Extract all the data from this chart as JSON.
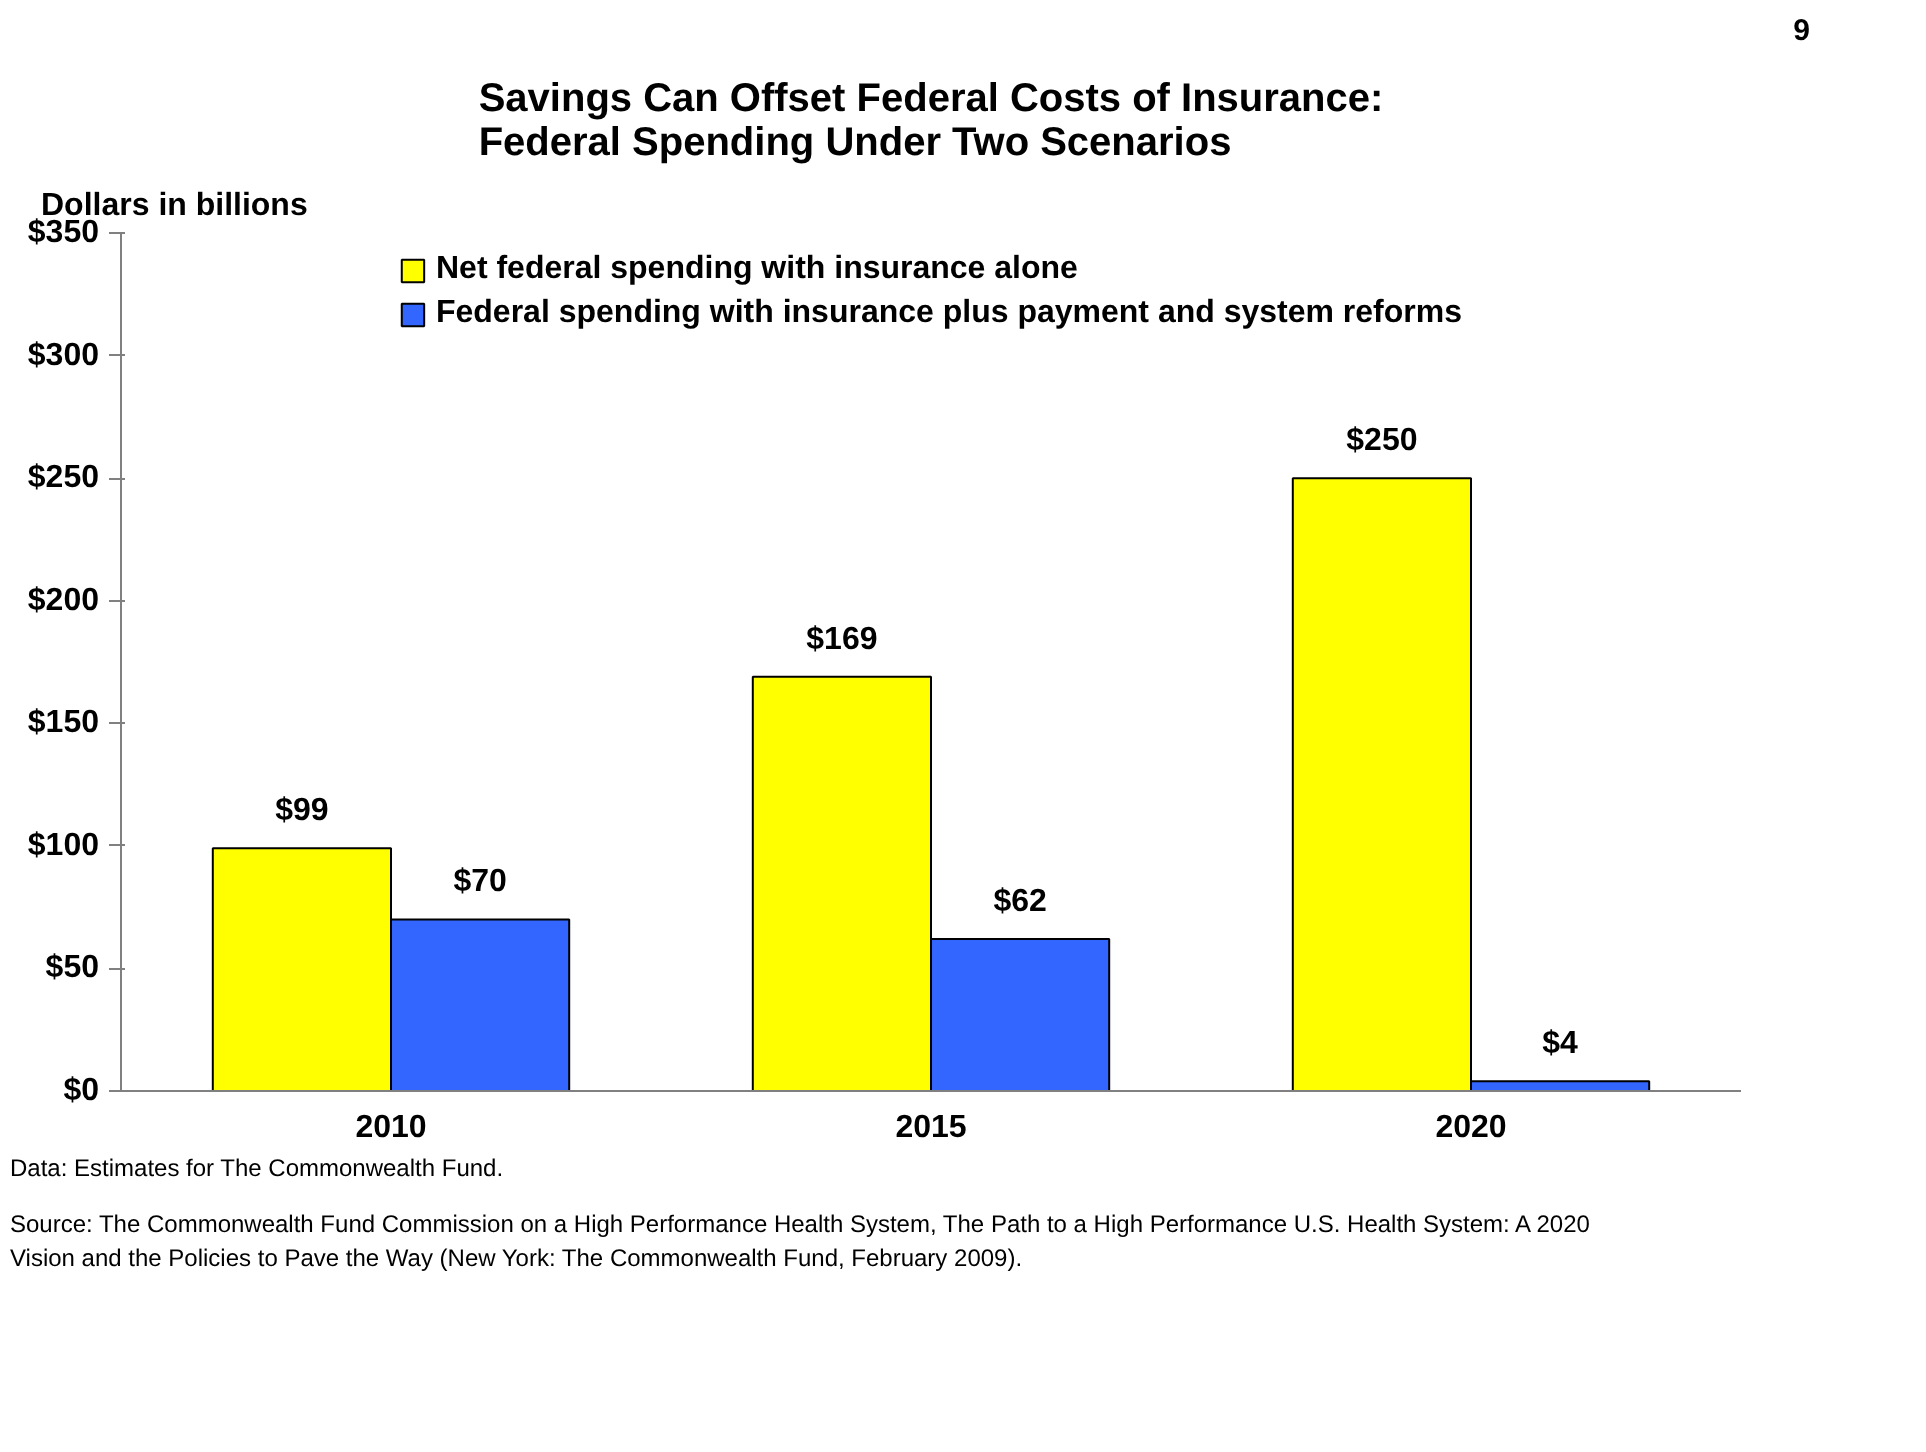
{
  "chart_data": {
    "type": "bar",
    "title": "Savings Can Offset Federal Costs of Insurance:\nFederal Spending Under Two Scenarios",
    "ylabel": "Dollars in billions",
    "categories": [
      "2010",
      "2015",
      "2020"
    ],
    "series": [
      {
        "name": "Net federal spending with insurance alone",
        "color": "#ffff00",
        "values": [
          99,
          169,
          250
        ],
        "value_labels": [
          "$99",
          "$169",
          "$250"
        ]
      },
      {
        "name": "Federal spending with insurance plus payment and system reforms",
        "color": "#3366ff",
        "values": [
          70,
          62,
          4
        ],
        "value_labels": [
          "$70",
          "$62",
          "$4"
        ]
      }
    ],
    "ylim": [
      0,
      350
    ],
    "yticks": [
      {
        "value": 0,
        "label": "$0"
      },
      {
        "value": 50,
        "label": "$50"
      },
      {
        "value": 100,
        "label": "$100"
      },
      {
        "value": 150,
        "label": "$150"
      },
      {
        "value": 200,
        "label": "$200"
      },
      {
        "value": 250,
        "label": "$250"
      },
      {
        "value": 300,
        "label": "$300"
      },
      {
        "value": 350,
        "label": "$350"
      }
    ],
    "grid": false,
    "legend": "top",
    "annotations": [
      "9",
      "Data: Estimates for The Commonwealth Fund.",
      "Source: The Commonwealth Fund Commission on a High Performance Health System, The Path to a High Performance U.S. Health System: A 2020 Vision and the Policies to Pave the Way (New York: The Commonwealth Fund, February 2009)."
    ]
  }
}
